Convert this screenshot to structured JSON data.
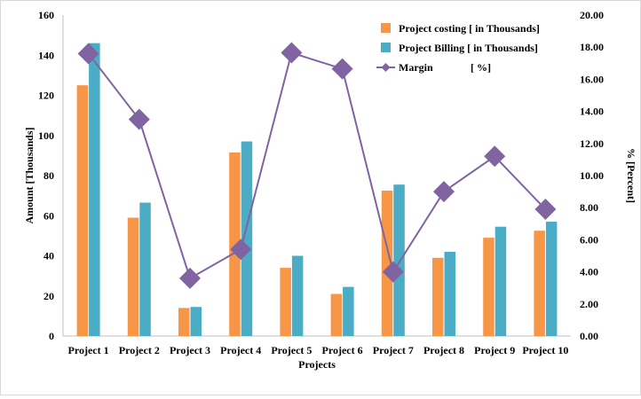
{
  "chart_data": {
    "type": "bar",
    "title": "",
    "xlabel": "Projects",
    "ylabel": "Amount [Thousands]",
    "y2label": "% [Percent]",
    "ylim": [
      0,
      160
    ],
    "y2lim": [
      0,
      20
    ],
    "yticks": [
      "0",
      "20",
      "40",
      "60",
      "80",
      "100",
      "120",
      "140",
      "160"
    ],
    "y2ticks": [
      "0.00",
      "2.00",
      "4.00",
      "6.00",
      "8.00",
      "10.00",
      "12.00",
      "14.00",
      "16.00",
      "18.00",
      "20.00"
    ],
    "categories": [
      "Project 1",
      "Project 2",
      "Project 3",
      "Project 4",
      "Project 5",
      "Project 6",
      "Project 7",
      "Project 8",
      "Project 9",
      "Project 10"
    ],
    "series": [
      {
        "name": "Project costing [ in Thousands]",
        "type": "bar",
        "axis": "left",
        "color": "#f79646",
        "values": [
          125,
          59,
          14,
          91.5,
          34,
          21,
          72.5,
          39,
          49,
          52.5
        ]
      },
      {
        "name": "Project Billing  [ in Thousands]",
        "type": "bar",
        "axis": "left",
        "color": "#4bacc6",
        "values": [
          146,
          66.5,
          14.5,
          97,
          40,
          24.5,
          75.5,
          42,
          54.5,
          57
        ]
      },
      {
        "name": "Margin",
        "unit": "[ %]",
        "type": "line",
        "axis": "right",
        "color": "#8064a2",
        "values": [
          17.6,
          13.5,
          3.6,
          5.4,
          17.65,
          16.65,
          4.0,
          9.0,
          11.2,
          7.9
        ]
      }
    ],
    "legend_position": "top-right",
    "grid": false
  }
}
